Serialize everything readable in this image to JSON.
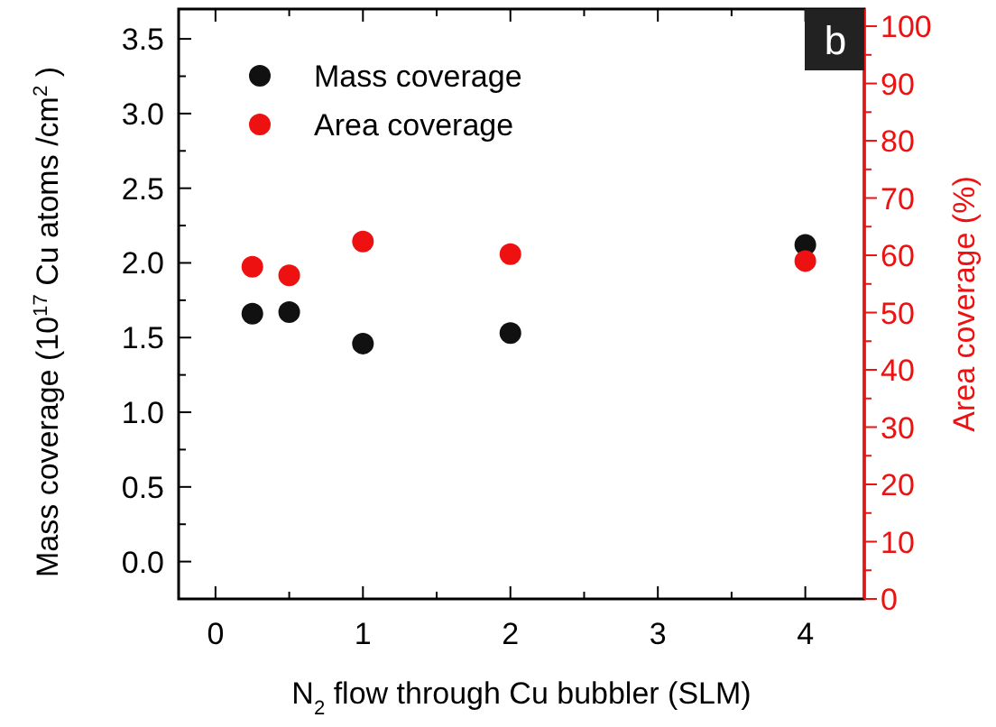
{
  "chart_data": {
    "type": "scatter",
    "xlabel": "N$_{2}$ flow through Cu bubbler (SLM)",
    "ylabel": "Mass coverage (10$^{17}$ Cu atoms /cm$^{2}$)",
    "y2label": "Area coverage (%)",
    "annotations": [
      "b"
    ],
    "xlim": [
      -0.25,
      4.4
    ],
    "xticks": [
      0,
      {
        "value": 0.5,
        "label": null
      },
      1,
      {
        "value": 1.5,
        "label": null
      },
      2,
      {
        "value": 2.5,
        "label": null
      },
      3,
      {
        "value": 3.5,
        "label": null
      },
      4
    ],
    "ylim": [
      -0.25,
      3.7
    ],
    "yticks": [
      {
        "value": 0,
        "label": "0.0"
      },
      {
        "value": 0.25,
        "label": null
      },
      0.5,
      {
        "value": 0.75,
        "label": null
      },
      {
        "value": 1,
        "label": "1.0"
      },
      {
        "value": 1.25,
        "label": null
      },
      1.5,
      {
        "value": 1.75,
        "label": null
      },
      {
        "value": 2,
        "label": "2.0"
      },
      {
        "value": 2.25,
        "label": null
      },
      2.5,
      {
        "value": 2.75,
        "label": null
      },
      {
        "value": 3,
        "label": "3.0"
      },
      {
        "value": 3.25,
        "label": null
      },
      3.5
    ],
    "y2lim": [
      0,
      103
    ],
    "y2ticks": [
      0,
      {
        "value": 5,
        "label": null
      },
      10,
      {
        "value": 15,
        "label": null
      },
      20,
      {
        "value": 25,
        "label": null
      },
      30,
      {
        "value": 35,
        "label": null
      },
      40,
      {
        "value": 45,
        "label": null
      },
      50,
      {
        "value": 55,
        "label": null
      },
      60,
      {
        "value": 65,
        "label": null
      },
      70,
      {
        "value": 75,
        "label": null
      },
      80,
      {
        "value": 85,
        "label": null
      },
      90,
      {
        "value": 95,
        "label": null
      },
      100
    ],
    "x": [
      0.25,
      0.5,
      1,
      2,
      4
    ],
    "marker": "circle",
    "legend": "top left",
    "series": [
      {
        "name": "Mass coverage",
        "color": "#111111",
        "values": [
          1.66,
          1.67,
          1.46,
          1.53,
          2.12
        ]
      },
      {
        "name": "Area coverage",
        "color": "#ee1111",
        "axis": "y2",
        "values": [
          58.0,
          56.5,
          62.4,
          60.2,
          59.0
        ]
      }
    ]
  }
}
